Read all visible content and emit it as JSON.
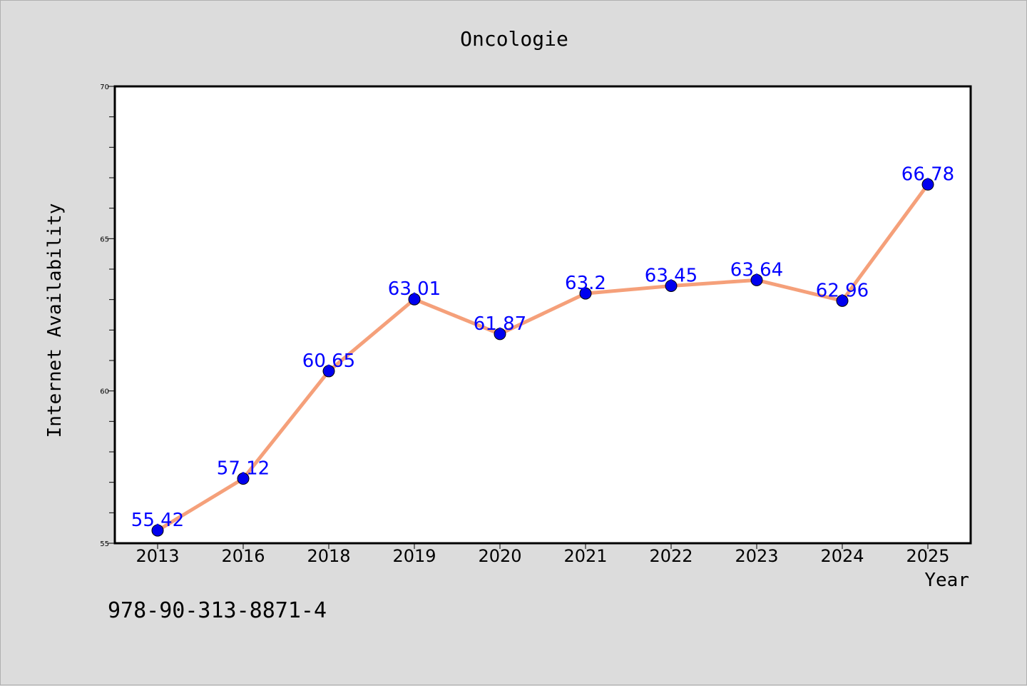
{
  "chart_data": {
    "type": "line",
    "title": "Oncologie",
    "xlabel": "Year",
    "ylabel": "Internet Availability",
    "categories": [
      "2013",
      "2016",
      "2018",
      "2019",
      "2020",
      "2021",
      "2022",
      "2023",
      "2024",
      "2025"
    ],
    "values": [
      55.42,
      57.12,
      60.65,
      63.01,
      61.87,
      63.2,
      63.45,
      63.64,
      62.96,
      66.78
    ],
    "data_labels": [
      "55.42",
      "57.12",
      "60.65",
      "63.01",
      "61.87",
      "63.2",
      "63.45",
      "63.64",
      "62.96",
      "66.78"
    ],
    "ylim": [
      55,
      70
    ],
    "yticks": [
      "55",
      "60",
      "65",
      "70"
    ],
    "line_color": "#f5a07a",
    "marker_color": "#0000ee",
    "label_color": "#0000ff",
    "grid": false,
    "legend": "none"
  },
  "footer_text": "978-90-313-8871-4"
}
